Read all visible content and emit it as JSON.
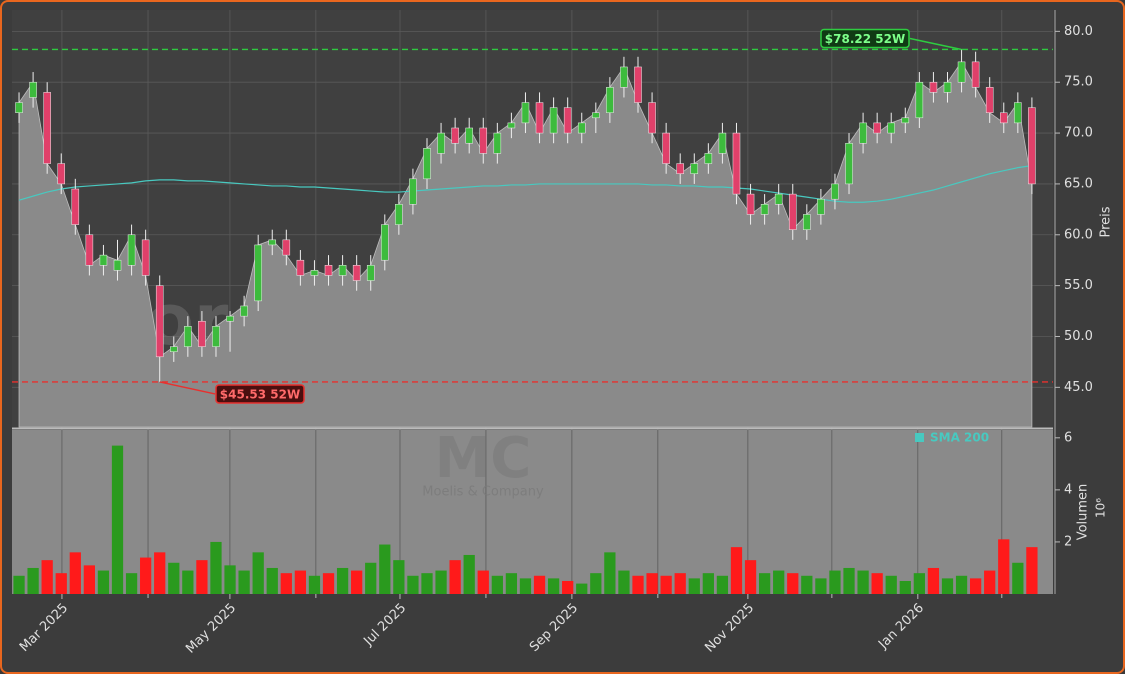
{
  "chart_data": {
    "type": "candlestick",
    "watermark": "forexsignale.trade",
    "symbol": "MC",
    "company": "Moelis & Company",
    "y_label": "Preis",
    "categories": [
      null,
      null,
      null,
      null,
      null,
      null,
      null,
      null,
      null,
      null,
      null,
      null,
      null,
      null,
      null,
      null,
      null,
      null,
      null,
      null,
      null,
      null,
      null,
      null,
      null,
      null,
      null,
      null,
      null,
      null,
      null,
      null,
      null,
      null,
      null,
      null,
      null,
      null,
      null,
      null,
      null,
      null,
      null,
      null,
      null,
      null,
      null,
      null,
      null,
      null,
      null,
      null,
      null,
      null,
      null,
      null,
      null,
      null,
      null,
      null,
      null,
      null,
      null,
      null,
      null,
      null,
      null,
      null,
      null,
      null,
      null,
      null,
      null
    ],
    "open": [
      72,
      73.5,
      74,
      67,
      64.5,
      60,
      57,
      56.5,
      57,
      59.5,
      55,
      48.5,
      49,
      51.5,
      49,
      51.5,
      52,
      53.5,
      59,
      59.5,
      57.5,
      56,
      57,
      56,
      57,
      55.5,
      57.5,
      61,
      63,
      65.5,
      68,
      70.5,
      69,
      70.5,
      68,
      70.5,
      71,
      73,
      70,
      72.5,
      70,
      71.5,
      72,
      74.5,
      76.5,
      73,
      70,
      67,
      66,
      67,
      68,
      70,
      64,
      62,
      63,
      64,
      60.5,
      62,
      63.5,
      65,
      69,
      71,
      70,
      71,
      71.5,
      75,
      74,
      75,
      77,
      74.5,
      72,
      71,
      72.5
    ],
    "high": [
      74,
      76,
      75,
      68,
      65.5,
      61,
      59,
      59.5,
      61,
      60.5,
      56,
      50,
      52,
      52.5,
      52,
      52.5,
      54,
      60,
      60.5,
      60.5,
      58.5,
      57.5,
      58,
      58,
      58,
      58,
      62,
      64,
      66.5,
      69.5,
      71,
      71.5,
      71.5,
      71.5,
      71,
      72,
      74,
      74,
      73.5,
      73.5,
      72,
      73,
      75.5,
      77.5,
      77.5,
      74,
      71,
      68,
      68,
      69,
      71,
      71,
      65,
      64,
      65,
      65,
      63,
      64.5,
      66,
      70,
      72,
      72,
      72,
      72.5,
      76,
      76,
      76,
      78.22,
      78,
      75.5,
      73,
      74,
      73.5
    ],
    "low": [
      71,
      72.5,
      66,
      64,
      60,
      56,
      56,
      55.5,
      56,
      55,
      45.53,
      47.5,
      48,
      48,
      48,
      48.5,
      51,
      52.5,
      58,
      57,
      55,
      55,
      55,
      55,
      54.5,
      54.5,
      56.5,
      60,
      62,
      64.5,
      67,
      68,
      68,
      67,
      67,
      69.5,
      70,
      69,
      69,
      69,
      69,
      70,
      71,
      73.5,
      72,
      69,
      66,
      65,
      65,
      66,
      67,
      63,
      61,
      61,
      62,
      59.5,
      59.5,
      61,
      62.5,
      64,
      68,
      69,
      69,
      70,
      70.5,
      73,
      73,
      74,
      73.5,
      71,
      70,
      70,
      64
    ],
    "close": [
      73,
      75,
      67,
      65,
      61,
      57,
      58,
      57.5,
      60,
      56,
      48,
      49,
      51,
      49,
      51,
      52,
      53,
      59,
      59.5,
      58,
      56,
      56.5,
      56,
      57,
      55.5,
      57,
      61,
      63,
      65.5,
      68.5,
      70,
      69,
      70.5,
      68,
      70,
      71,
      73,
      70,
      72.5,
      70,
      71,
      72,
      74.5,
      76.5,
      73,
      70,
      67,
      66,
      67,
      68,
      70,
      64,
      62,
      63,
      64,
      60.5,
      62,
      63.5,
      65,
      69,
      71,
      70,
      71,
      71.5,
      75,
      74,
      75,
      77,
      74.5,
      72,
      71,
      73,
      65
    ],
    "up_color": "#3dbb3d",
    "down_color": "#e0406a",
    "area_color": "#8a8a8a",
    "sma": {
      "name": "SMA 200",
      "color": "#48c9c0",
      "values": [
        63.4,
        63.8,
        64.2,
        64.5,
        64.7,
        64.8,
        64.9,
        65,
        65.1,
        65.3,
        65.4,
        65.4,
        65.3,
        65.3,
        65.2,
        65.1,
        65,
        64.9,
        64.8,
        64.8,
        64.7,
        64.7,
        64.6,
        64.5,
        64.4,
        64.3,
        64.2,
        64.2,
        64.3,
        64.4,
        64.5,
        64.6,
        64.7,
        64.8,
        64.8,
        64.9,
        64.9,
        65,
        65,
        65,
        65,
        65,
        65,
        65,
        65,
        64.9,
        64.9,
        64.8,
        64.8,
        64.7,
        64.7,
        64.6,
        64.5,
        64.3,
        64.1,
        63.9,
        63.7,
        63.5,
        63.3,
        63.2,
        63.2,
        63.3,
        63.5,
        63.8,
        64.1,
        64.4,
        64.8,
        65.2,
        65.6,
        66,
        66.3,
        66.6,
        66.8
      ]
    },
    "ylim": [
      41.1,
      82.1
    ],
    "yticks": [
      {
        "value": 45,
        "label": "45.0"
      },
      {
        "value": 50,
        "label": "50.0"
      },
      {
        "value": 55,
        "label": "55.0"
      },
      {
        "value": 60,
        "label": "60.0"
      },
      {
        "value": 65,
        "label": "65.0"
      },
      {
        "value": 70,
        "label": "70.0"
      },
      {
        "value": 75,
        "label": "75.0"
      },
      {
        "value": 80,
        "label": "80.0"
      }
    ],
    "xlim": [
      0,
      74
    ],
    "xticks": [
      {
        "value": 3.55,
        "label": "Mar 2025"
      },
      {
        "value": 15.49,
        "label": "May 2025"
      },
      {
        "value": 27.58,
        "label": "Jul 2025"
      },
      {
        "value": 39.8,
        "label": "Sep 2025"
      },
      {
        "value": 52.31,
        "label": "Nov 2025"
      },
      {
        "value": 64.39,
        "label": "Jan 2026"
      }
    ],
    "xminorticks": [
      9.67,
      21.6,
      33.69,
      45.91,
      58.28,
      70.36
    ],
    "grid": true,
    "annotations": [
      {
        "text": "$78.22 52W",
        "value": 78.22,
        "index": 67,
        "color": "#2ecc40"
      },
      {
        "text": "$45.53 52W",
        "value": 45.53,
        "index": 10,
        "color": "#e8302e"
      }
    ],
    "volume": {
      "y_label": "Volumen",
      "unit": "10⁶",
      "up_color": "#2a9a1e",
      "down_color": "#ff1a1a",
      "values": [
        0.7,
        1.0,
        1.3,
        0.8,
        1.6,
        1.1,
        0.9,
        5.7,
        0.8,
        1.4,
        1.6,
        1.2,
        0.9,
        1.3,
        2.0,
        1.1,
        0.9,
        1.6,
        1.0,
        0.8,
        0.9,
        0.7,
        0.8,
        1.0,
        0.9,
        1.2,
        1.9,
        1.3,
        0.7,
        0.8,
        0.9,
        1.3,
        1.5,
        0.9,
        0.7,
        0.8,
        0.6,
        0.7,
        0.6,
        0.5,
        0.4,
        0.8,
        1.6,
        0.9,
        0.7,
        0.8,
        0.7,
        0.8,
        0.6,
        0.8,
        0.7,
        1.8,
        1.3,
        0.8,
        0.9,
        0.8,
        0.7,
        0.6,
        0.9,
        1.0,
        0.9,
        0.8,
        0.7,
        0.5,
        0.8,
        1.0,
        0.6,
        0.7,
        0.6,
        0.9,
        2.1,
        1.2,
        1.8
      ],
      "ylim": [
        0,
        6.3
      ],
      "yticks": [
        2,
        4,
        6
      ]
    }
  }
}
